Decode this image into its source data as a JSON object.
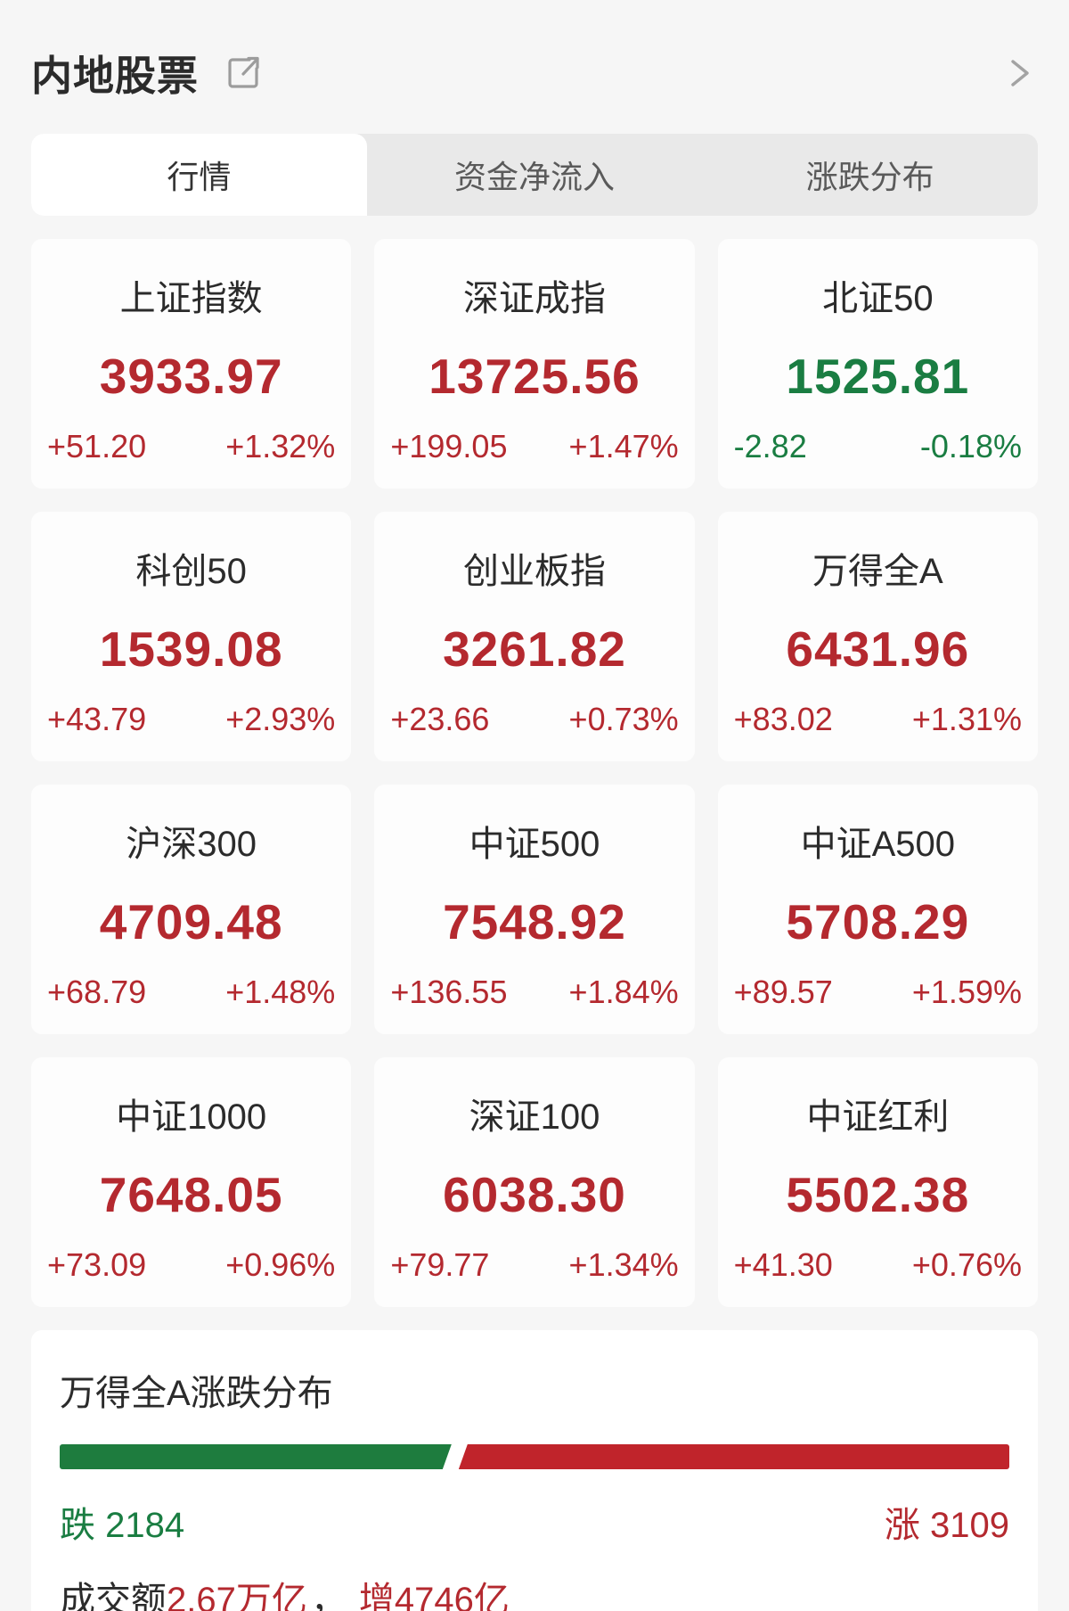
{
  "header": {
    "title": "内地股票"
  },
  "tabs": [
    {
      "label": "行情",
      "active": true
    },
    {
      "label": "资金净流入",
      "active": false
    },
    {
      "label": "涨跌分布",
      "active": false
    }
  ],
  "indices": [
    {
      "name": "上证指数",
      "value": "3933.97",
      "change": "+51.20",
      "change_pct": "+1.32%",
      "direction": "up"
    },
    {
      "name": "深证成指",
      "value": "13725.56",
      "change": "+199.05",
      "change_pct": "+1.47%",
      "direction": "up"
    },
    {
      "name": "北证50",
      "value": "1525.81",
      "change": "-2.82",
      "change_pct": "-0.18%",
      "direction": "down"
    },
    {
      "name": "科创50",
      "value": "1539.08",
      "change": "+43.79",
      "change_pct": "+2.93%",
      "direction": "up"
    },
    {
      "name": "创业板指",
      "value": "3261.82",
      "change": "+23.66",
      "change_pct": "+0.73%",
      "direction": "up"
    },
    {
      "name": "万得全A",
      "value": "6431.96",
      "change": "+83.02",
      "change_pct": "+1.31%",
      "direction": "up"
    },
    {
      "name": "沪深300",
      "value": "4709.48",
      "change": "+68.79",
      "change_pct": "+1.48%",
      "direction": "up"
    },
    {
      "name": "中证500",
      "value": "7548.92",
      "change": "+136.55",
      "change_pct": "+1.84%",
      "direction": "up"
    },
    {
      "name": "中证A500",
      "value": "5708.29",
      "change": "+89.57",
      "change_pct": "+1.59%",
      "direction": "up"
    },
    {
      "name": "中证1000",
      "value": "7648.05",
      "change": "+73.09",
      "change_pct": "+0.96%",
      "direction": "up"
    },
    {
      "name": "深证100",
      "value": "6038.30",
      "change": "+79.77",
      "change_pct": "+1.34%",
      "direction": "up"
    },
    {
      "name": "中证红利",
      "value": "5502.38",
      "change": "+41.30",
      "change_pct": "+0.76%",
      "direction": "up"
    }
  ],
  "distribution": {
    "title": "万得全A涨跌分布",
    "down_label": "跌",
    "down_count": 2184,
    "up_label": "涨",
    "up_count": 3109,
    "turnover_label": "成交额",
    "turnover_value": "2.67万亿",
    "separator": "，",
    "turnover_extra": "增4746亿"
  },
  "colors": {
    "up_red": "#b4292f",
    "down_green": "#1a7d42",
    "bar_red": "#c0242b",
    "bar_green": "#1e7c3e",
    "background": "#f6f6f6",
    "tabbar_background": "#e9e9e9"
  }
}
